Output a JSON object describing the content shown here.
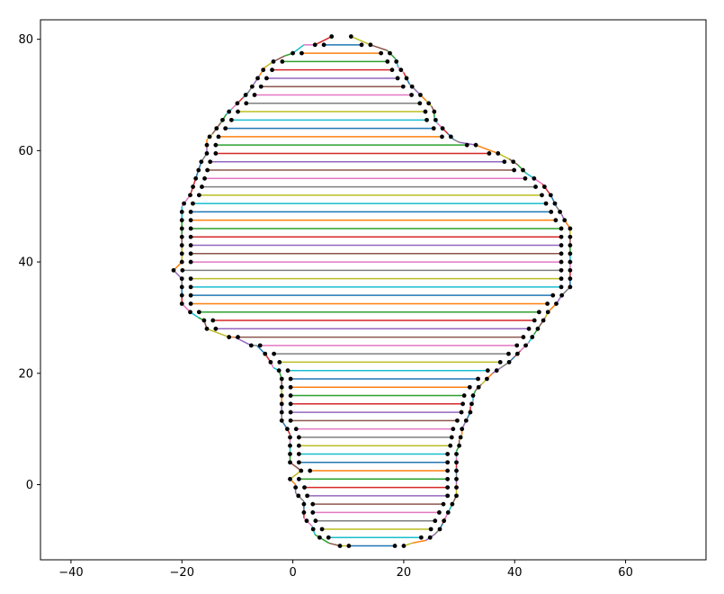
{
  "chart_data": {
    "type": "line",
    "title": "",
    "xlabel": "",
    "ylabel": "",
    "xlim": [
      -45.5,
      74.5
    ],
    "ylim": [
      -13.5,
      83.5
    ],
    "xticks": [
      -40,
      -20,
      0,
      20,
      40,
      60
    ],
    "xtick_labels": [
      "−40",
      "−20",
      "0",
      "20",
      "40",
      "60"
    ],
    "yticks": [
      0,
      20,
      40,
      60,
      80
    ],
    "ytick_labels": [
      "0",
      "20",
      "40",
      "60",
      "80"
    ],
    "grid": false,
    "legend": "none",
    "marker_color": "#000000",
    "colors": [
      "#1f77b4",
      "#ff7f0e",
      "#2ca02c",
      "#d62728",
      "#9467bd",
      "#8c564b",
      "#e377c2",
      "#7f7f7f",
      "#bcbd22",
      "#17becf"
    ],
    "left_boundary": [
      [
        7,
        80.5
      ],
      [
        4,
        79
      ],
      [
        2,
        79
      ],
      [
        0,
        77.5
      ],
      [
        -1.5,
        77
      ],
      [
        -3.5,
        76
      ],
      [
        -5,
        75
      ],
      [
        -6,
        73.5
      ],
      [
        -7,
        72
      ],
      [
        -8,
        70.5
      ],
      [
        -9,
        69.5
      ],
      [
        -10,
        68.5
      ],
      [
        -11,
        67.5
      ],
      [
        -12,
        66.5
      ],
      [
        -13,
        65
      ],
      [
        -14.5,
        63
      ],
      [
        -15.5,
        62
      ],
      [
        -15.5,
        60.5
      ],
      [
        -15.5,
        59.5
      ],
      [
        -16.5,
        58
      ],
      [
        -17.5,
        55
      ],
      [
        -18.5,
        52
      ],
      [
        -20,
        50
      ],
      [
        -20,
        47.5
      ],
      [
        -20,
        45
      ],
      [
        -20,
        42.5
      ],
      [
        -20,
        40
      ],
      [
        -21.5,
        38.5
      ],
      [
        -20,
        37
      ],
      [
        -20,
        35.5
      ],
      [
        -20,
        34
      ],
      [
        -20,
        32.5
      ],
      [
        -18.5,
        31
      ],
      [
        -17,
        30
      ],
      [
        -16,
        29.5
      ],
      [
        -15.5,
        28
      ],
      [
        -11.5,
        26.5
      ],
      [
        -10.5,
        26.5
      ],
      [
        -7.5,
        25
      ],
      [
        -6.5,
        25
      ],
      [
        -5,
        23.5
      ],
      [
        -4,
        22
      ],
      [
        -3.5,
        21
      ],
      [
        -2.5,
        20.5
      ],
      [
        -2,
        19
      ],
      [
        -2,
        17.5
      ],
      [
        -2,
        16
      ],
      [
        -2,
        14.5
      ],
      [
        -2,
        13
      ],
      [
        -2,
        11.5
      ],
      [
        -1,
        10
      ],
      [
        -0.5,
        9
      ],
      [
        -0.5,
        7.5
      ],
      [
        -0.5,
        6
      ],
      [
        -0.5,
        4
      ],
      [
        1.5,
        2.5
      ],
      [
        -0.5,
        1
      ],
      [
        0.5,
        0
      ],
      [
        0.5,
        -1.5
      ],
      [
        2,
        -3
      ],
      [
        2,
        -4.5
      ],
      [
        2,
        -6
      ],
      [
        3.5,
        -7.5
      ],
      [
        4,
        -9
      ],
      [
        6.5,
        -10.5
      ],
      [
        8.5,
        -11
      ],
      [
        10.5,
        -11
      ]
    ],
    "right_boundary": [
      [
        10.5,
        80.5
      ],
      [
        14,
        79
      ],
      [
        17,
        78
      ],
      [
        18.5,
        76.5
      ],
      [
        19,
        75
      ],
      [
        20,
        74
      ],
      [
        20.5,
        73
      ],
      [
        21,
        72
      ],
      [
        22,
        71
      ],
      [
        23,
        70
      ],
      [
        24,
        69
      ],
      [
        25,
        68
      ],
      [
        25.5,
        67
      ],
      [
        25.5,
        66
      ],
      [
        26,
        65
      ],
      [
        27,
        64
      ],
      [
        28,
        63
      ],
      [
        29,
        62
      ],
      [
        30,
        61.5
      ],
      [
        33,
        61
      ],
      [
        37,
        59.5
      ],
      [
        39,
        58.5
      ],
      [
        40.5,
        57.5
      ],
      [
        42,
        56
      ],
      [
        43.5,
        55
      ],
      [
        45,
        54
      ],
      [
        46.5,
        52
      ],
      [
        47.5,
        50
      ],
      [
        48.5,
        48.5
      ],
      [
        49,
        47.5
      ],
      [
        50,
        46
      ],
      [
        50,
        44.5
      ],
      [
        50,
        43
      ],
      [
        50,
        41.5
      ],
      [
        50,
        40
      ],
      [
        50,
        38.5
      ],
      [
        50,
        37
      ],
      [
        50,
        35.5
      ],
      [
        48.5,
        34
      ],
      [
        47.5,
        32.5
      ],
      [
        46,
        31
      ],
      [
        45.5,
        30
      ],
      [
        44.5,
        28.5
      ],
      [
        43.5,
        27
      ],
      [
        42.5,
        25.5
      ],
      [
        41,
        24
      ],
      [
        40,
        23
      ],
      [
        39,
        22
      ],
      [
        37.5,
        21
      ],
      [
        36,
        20
      ],
      [
        35,
        19
      ],
      [
        34,
        18
      ],
      [
        33,
        17
      ],
      [
        32.5,
        16
      ],
      [
        32.5,
        15
      ],
      [
        32,
        14
      ],
      [
        32,
        13
      ],
      [
        31.5,
        12
      ],
      [
        31,
        11
      ],
      [
        30.5,
        10
      ],
      [
        30.5,
        9
      ],
      [
        30,
        8
      ],
      [
        30,
        7
      ],
      [
        29.5,
        6
      ],
      [
        29.5,
        5
      ],
      [
        29.5,
        4
      ],
      [
        29.5,
        3
      ],
      [
        29.5,
        2
      ],
      [
        29.5,
        1
      ],
      [
        29.5,
        0
      ],
      [
        29.5,
        -1
      ],
      [
        29.5,
        -2
      ],
      [
        29,
        -3
      ],
      [
        28.5,
        -4
      ],
      [
        28,
        -5
      ],
      [
        27.5,
        -6
      ],
      [
        27,
        -7
      ],
      [
        26.5,
        -8
      ],
      [
        25.5,
        -9
      ],
      [
        24,
        -10
      ],
      [
        21.5,
        -10.5
      ],
      [
        20,
        -11
      ]
    ]
  }
}
